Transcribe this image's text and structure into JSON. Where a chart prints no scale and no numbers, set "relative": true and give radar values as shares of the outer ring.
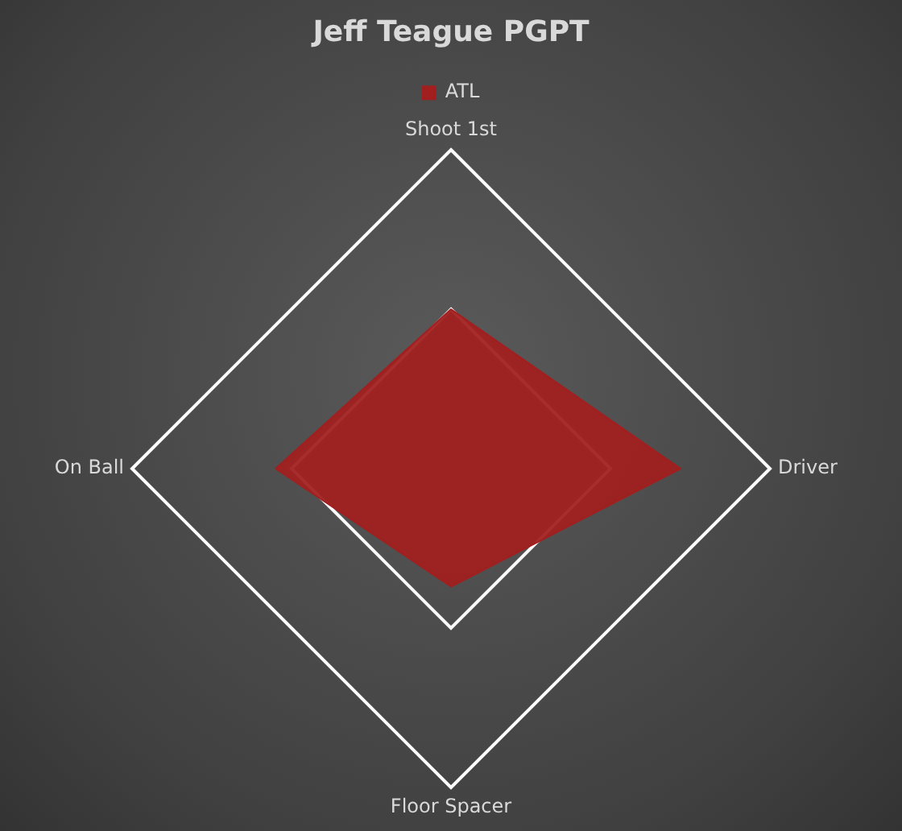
{
  "chart_data": {
    "type": "radar",
    "title": "Jeff Teague PGPT",
    "relative": true,
    "legend": "top",
    "grid": true,
    "marker": "none",
    "categories": [
      "Shoot 1st",
      "Driver",
      "Floor Spacer",
      "On Ball"
    ],
    "series": [
      {
        "name": "ATL",
        "color": "#a21f1f",
        "values": [
          0.5,
          0.72,
          0.37,
          0.55
        ]
      }
    ]
  }
}
